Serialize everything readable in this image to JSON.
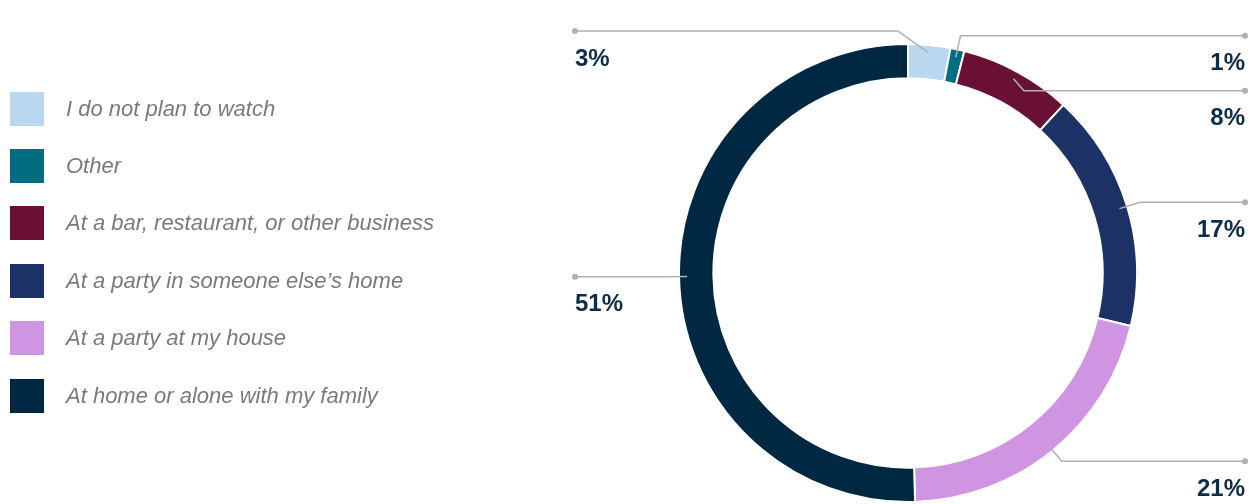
{
  "chart_data": {
    "type": "donut",
    "categories": [
      "I do not plan to watch",
      "Other",
      "At a bar, restaurant, or other business",
      "At a party in someone else’s home",
      "At a party at my house",
      "At home or alone with my family"
    ],
    "values": [
      3,
      1,
      8,
      17,
      21,
      51
    ],
    "colors": [
      "#b9d7ee",
      "#006d80",
      "#6b1035",
      "#1c3166",
      "#cf95e3",
      "#002842"
    ],
    "value_labels": [
      "3%",
      "1%",
      "8%",
      "17%",
      "21%",
      "51%"
    ],
    "legend": "left"
  }
}
